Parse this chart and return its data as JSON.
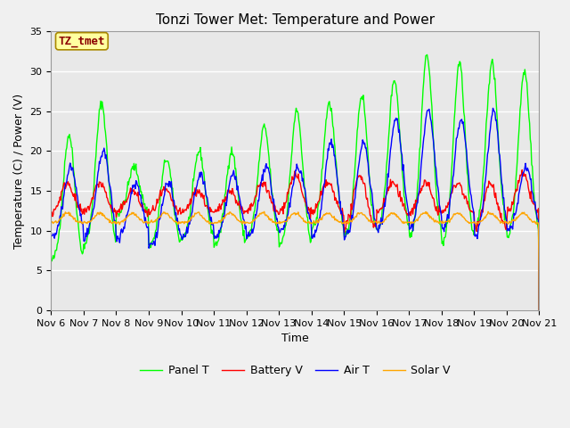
{
  "title": "Tonzi Tower Met: Temperature and Power",
  "xlabel": "Time",
  "ylabel": "Temperature (C) / Power (V)",
  "annotation": "TZ_tmet",
  "xlim": [
    0,
    15
  ],
  "ylim": [
    0,
    35
  ],
  "yticks": [
    0,
    5,
    10,
    15,
    20,
    25,
    30,
    35
  ],
  "xtick_labels": [
    "Nov 6",
    "Nov 7",
    "Nov 8",
    "Nov 9",
    "Nov 10",
    "Nov 11",
    "Nov 12",
    "Nov 13",
    "Nov 14",
    "Nov 15",
    "Nov 16",
    "Nov 17",
    "Nov 18",
    "Nov 19",
    "Nov 20",
    "Nov 21"
  ],
  "legend_labels": [
    "Panel T",
    "Battery V",
    "Air T",
    "Solar V"
  ],
  "colors": [
    "#00ff00",
    "#ff0000",
    "#0000ff",
    "#ffa500"
  ],
  "fig_bg": "#f0f0f0",
  "plot_bg": "#e8e8e8",
  "grid_color": "#ffffff",
  "title_fontsize": 11,
  "label_fontsize": 9,
  "tick_fontsize": 8,
  "panel_peaks": [
    22,
    26,
    18,
    19,
    20,
    20,
    23,
    25,
    26,
    27,
    29,
    32,
    31,
    31,
    30
  ],
  "panel_troughs": [
    6,
    8,
    12,
    8,
    9,
    8,
    9,
    8,
    10,
    9,
    10,
    9,
    8,
    10,
    9
  ],
  "air_peaks": [
    18,
    20,
    16,
    16,
    17,
    17,
    18,
    18,
    21,
    21,
    24,
    25,
    24,
    25,
    18
  ],
  "air_troughs": [
    9,
    9,
    9,
    8,
    9,
    9,
    9,
    10,
    9,
    9,
    10,
    10,
    10,
    9,
    10
  ]
}
